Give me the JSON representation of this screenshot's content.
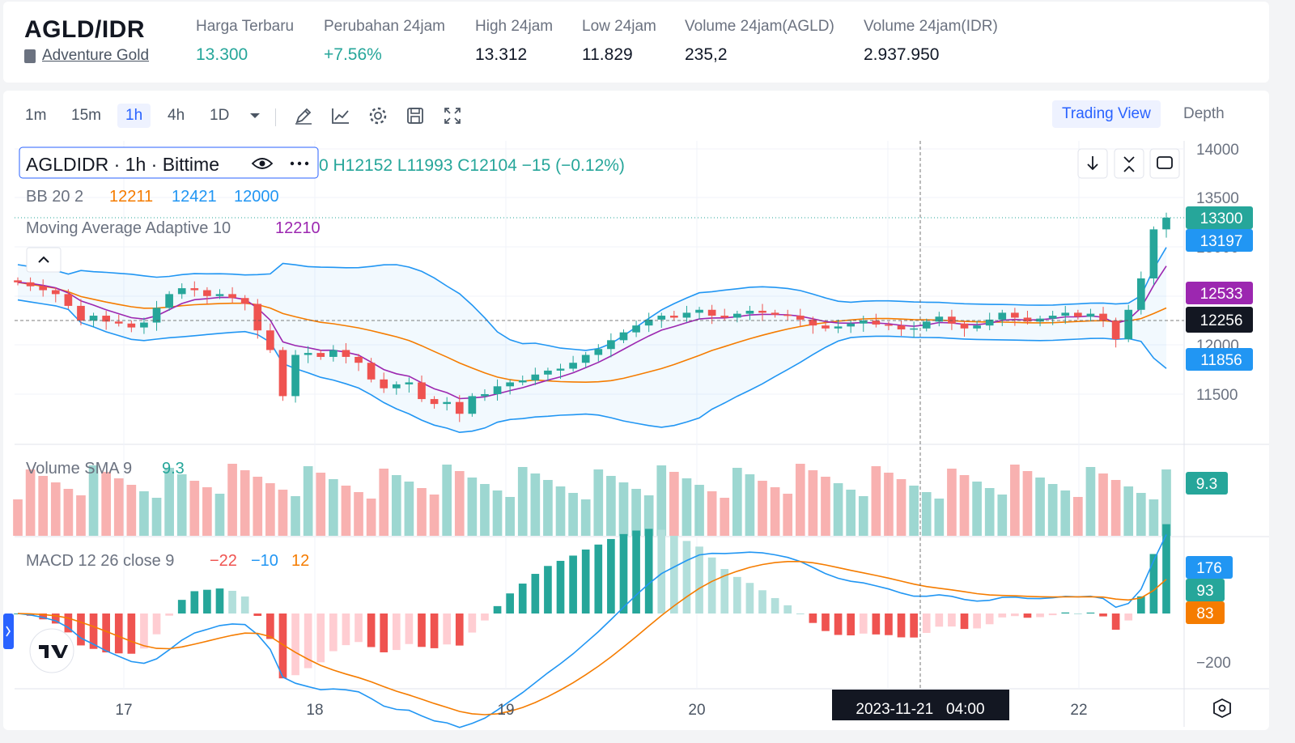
{
  "header": {
    "pair": "AGLD/IDR",
    "coin_name": "Adventure Gold",
    "book_icon": "book-icon",
    "stats": [
      {
        "label": "Harga Terbaru",
        "value": "13.300",
        "color": "green"
      },
      {
        "label": "Perubahan 24jam",
        "value": "+7.56%",
        "color": "green"
      },
      {
        "label": "High 24jam",
        "value": "13.312",
        "color": "default"
      },
      {
        "label": "Low 24jam",
        "value": "11.829",
        "color": "default"
      },
      {
        "label": "Volume 24jam(AGLD)",
        "value": "235,2",
        "color": "default"
      },
      {
        "label": "Volume 24jam(IDR)",
        "value": "2.937.950",
        "color": "default"
      }
    ]
  },
  "toolbar": {
    "timeframes": [
      "1m",
      "15m",
      "1h",
      "4h",
      "1D"
    ],
    "active_timeframe": "1h",
    "icons": [
      "chevron-down-icon",
      "pencil-icon",
      "line-chart-icon",
      "gear-icon",
      "save-icon",
      "fullscreen-icon"
    ],
    "trading_view_label": "Trading View",
    "depth_label": "Depth"
  },
  "legend": {
    "symbol": "AGLDIDR · 1h · Bittime",
    "ohlc_prefix": "O",
    "ohlc_text": "0 H12152 L11993 C12104 −15 (−0.12%)",
    "bb_label": "BB 20 2",
    "bb_values": [
      "12211",
      "12421",
      "12000"
    ],
    "maa_label": "Moving Average Adaptive 10",
    "maa_value": "12210",
    "volume_label": "Volume SMA 9",
    "volume_value": "9.3",
    "macd_label": "MACD 12 26 close 9",
    "macd_values": [
      "−22",
      "−10",
      "12"
    ]
  },
  "price_axis": {
    "ticks": [
      "14000",
      "13500",
      "13000",
      "12000",
      "11500"
    ],
    "badges": [
      {
        "label": "13300",
        "color": "#26a69a"
      },
      {
        "label": "13197",
        "color": "#2196f3"
      },
      {
        "label": "12533",
        "color": "#9c27b0"
      },
      {
        "label": "12256",
        "color": "#131722"
      },
      {
        "label": "11856",
        "color": "#2196f3"
      }
    ],
    "volume_badge": "9.3",
    "macd_badges": [
      {
        "label": "176",
        "color": "#2196f3"
      },
      {
        "label": "93",
        "color": "#26a69a"
      },
      {
        "label": "83",
        "color": "#f57c00"
      }
    ],
    "macd_tick": "−200"
  },
  "time_axis": {
    "ticks": [
      "17",
      "18",
      "19",
      "20",
      "22"
    ],
    "crosshair_label": "2023-11-21   04:00"
  },
  "colors": {
    "up": "#26a69a",
    "down": "#ef5350",
    "bb_band": "#2196f3",
    "bb_basis": "#f57c00",
    "maa": "#9c27b0",
    "accent": "#2962ff"
  },
  "chart_data": {
    "type": "candlestick",
    "series_approx_close": [
      12640,
      12600,
      12560,
      12520,
      12400,
      12250,
      12300,
      12240,
      12220,
      12180,
      12230,
      12380,
      12520,
      12580,
      12560,
      12500,
      12520,
      12480,
      12420,
      12150,
      11950,
      11480,
      11900,
      11920,
      11880,
      11950,
      11880,
      11820,
      11650,
      11560,
      11600,
      11620,
      11450,
      11400,
      11420,
      11300,
      11480,
      11500,
      11580,
      11620,
      11640,
      11700,
      11740,
      11760,
      11820,
      11900,
      11960,
      12050,
      12130,
      12200,
      12260,
      12300,
      12280,
      12330,
      12360,
      12300,
      12280,
      12320,
      12350,
      12330,
      12310,
      12300,
      12260,
      12200,
      12170,
      12190,
      12220,
      12250,
      12210,
      12200,
      12160,
      12170,
      12240,
      12290,
      12220,
      12170,
      12200,
      12260,
      12330,
      12280,
      12240,
      12270,
      12300,
      12330,
      12290,
      12320,
      12250,
      12060,
      12360,
      12680,
      13180,
      13300
    ]
  }
}
